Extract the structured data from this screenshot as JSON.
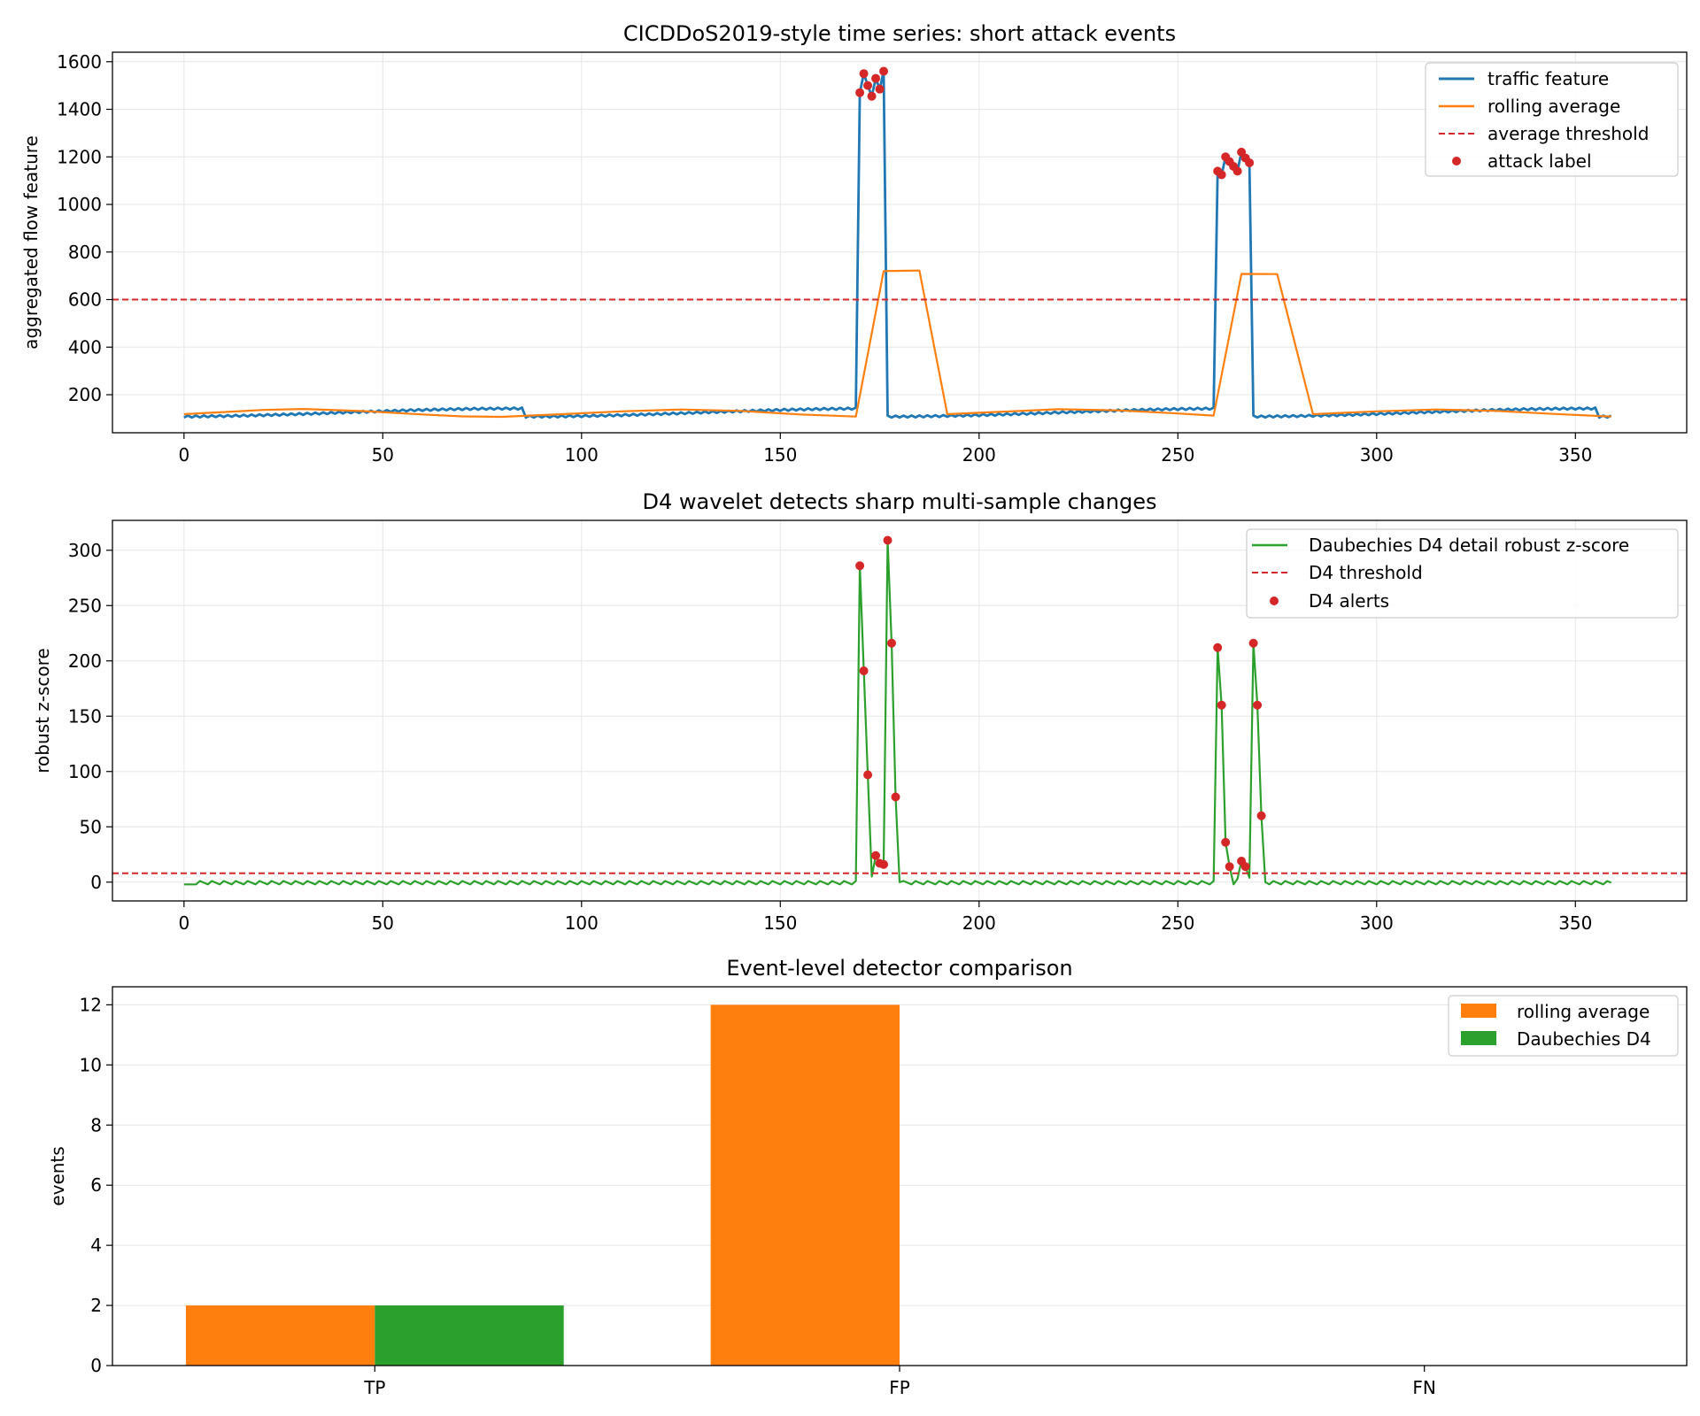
{
  "chart_data": [
    {
      "type": "line",
      "title": "CICDDoS2019-style time series: short attack events",
      "xlabel": "",
      "ylabel": "aggregated flow feature",
      "xlim": [
        -18,
        378
      ],
      "ylim": [
        40,
        1640
      ],
      "xticks": [
        0,
        50,
        100,
        150,
        200,
        250,
        300,
        350
      ],
      "yticks": [
        200,
        400,
        600,
        800,
        1000,
        1200,
        1400,
        1600
      ],
      "grid": true,
      "legend_position": "top-right",
      "series": [
        {
          "name": "traffic feature",
          "kind": "line",
          "color": "#1f77b4",
          "generator": "traffic",
          "baseline_mid": 125,
          "baseline_amp": 17,
          "baseline_period": 180,
          "bursts": [
            {
              "x": [
                170,
                171,
                172,
                173,
                174,
                175,
                176
              ],
              "y": [
                1470,
                1550,
                1500,
                1455,
                1530,
                1485,
                1560
              ]
            },
            {
              "x": [
                260,
                261,
                262,
                263,
                264,
                265,
                266,
                267,
                268
              ],
              "y": [
                1140,
                1125,
                1200,
                1180,
                1160,
                1140,
                1220,
                1195,
                1175
              ]
            }
          ]
        },
        {
          "name": "rolling average",
          "kind": "line",
          "color": "#ff7f0e",
          "points": [
            [
              0,
              118
            ],
            [
              10,
              127
            ],
            [
              20,
              136
            ],
            [
              30,
              140
            ],
            [
              45,
              131
            ],
            [
              60,
              117
            ],
            [
              70,
              109
            ],
            [
              80,
              107
            ],
            [
              95,
              118
            ],
            [
              110,
              130
            ],
            [
              125,
              138
            ],
            [
              140,
              132
            ],
            [
              155,
              117
            ],
            [
              169,
              108
            ],
            [
              176,
              720
            ],
            [
              185,
              722
            ],
            [
              192,
              118
            ],
            [
              205,
              128
            ],
            [
              220,
              139
            ],
            [
              235,
              134
            ],
            [
              250,
              121
            ],
            [
              259,
              112
            ],
            [
              266,
              708
            ],
            [
              275,
              707
            ],
            [
              284,
              118
            ],
            [
              300,
              130
            ],
            [
              315,
              138
            ],
            [
              330,
              132
            ],
            [
              345,
              119
            ],
            [
              359,
              108
            ]
          ]
        },
        {
          "name": "average threshold",
          "kind": "hline",
          "color": "#d62728",
          "y": 600
        },
        {
          "name": "attack label",
          "kind": "scatter",
          "color": "#d62728",
          "points": [
            [
              170,
              1470
            ],
            [
              171,
              1550
            ],
            [
              172,
              1500
            ],
            [
              173,
              1455
            ],
            [
              174,
              1530
            ],
            [
              175,
              1485
            ],
            [
              176,
              1560
            ],
            [
              260,
              1140
            ],
            [
              261,
              1125
            ],
            [
              262,
              1200
            ],
            [
              263,
              1180
            ],
            [
              264,
              1160
            ],
            [
              265,
              1140
            ],
            [
              266,
              1220
            ],
            [
              267,
              1195
            ],
            [
              268,
              1175
            ]
          ]
        }
      ]
    },
    {
      "type": "line",
      "title": "D4 wavelet detects sharp multi-sample changes",
      "xlabel": "",
      "ylabel": "robust z-score",
      "xlim": [
        -18,
        378
      ],
      "ylim": [
        -17,
        327
      ],
      "xticks": [
        0,
        50,
        100,
        150,
        200,
        250,
        300,
        350
      ],
      "yticks": [
        0,
        50,
        100,
        150,
        200,
        250,
        300
      ],
      "grid": true,
      "legend_position": "top-right",
      "series": [
        {
          "name": "Daubechies D4 detail robust z-score",
          "kind": "line",
          "color": "#2ca02c",
          "generator": "zscore",
          "spikes": [
            [
              170,
              286
            ],
            [
              171,
              191
            ],
            [
              172,
              97
            ],
            [
              173,
              5
            ],
            [
              174,
              24
            ],
            [
              175,
              17
            ],
            [
              176,
              16
            ],
            [
              177,
              309
            ],
            [
              178,
              216
            ],
            [
              179,
              77
            ],
            [
              180,
              0
            ],
            [
              260,
              212
            ],
            [
              261,
              160
            ],
            [
              262,
              36
            ],
            [
              263,
              14
            ],
            [
              264,
              -2
            ],
            [
              265,
              3
            ],
            [
              266,
              19
            ],
            [
              267,
              14
            ],
            [
              268,
              4
            ],
            [
              269,
              216
            ],
            [
              270,
              160
            ],
            [
              271,
              60
            ],
            [
              272,
              0
            ]
          ]
        },
        {
          "name": "D4 threshold",
          "kind": "hline",
          "color": "#d62728",
          "y": 8
        },
        {
          "name": "D4 alerts",
          "kind": "scatter",
          "color": "#d62728",
          "points": [
            [
              170,
              286
            ],
            [
              171,
              191
            ],
            [
              172,
              97
            ],
            [
              174,
              24
            ],
            [
              175,
              17
            ],
            [
              176,
              16
            ],
            [
              177,
              309
            ],
            [
              178,
              216
            ],
            [
              179,
              77
            ],
            [
              260,
              212
            ],
            [
              261,
              160
            ],
            [
              262,
              36
            ],
            [
              263,
              14
            ],
            [
              266,
              19
            ],
            [
              267,
              14
            ],
            [
              269,
              216
            ],
            [
              270,
              160
            ],
            [
              271,
              60
            ]
          ]
        }
      ]
    },
    {
      "type": "bar",
      "title": "Event-level detector comparison",
      "xlabel": "",
      "ylabel": "events",
      "categories": [
        "TP",
        "FP",
        "FN"
      ],
      "ylim": [
        0,
        12.6
      ],
      "yticks": [
        0,
        2,
        4,
        6,
        8,
        10,
        12
      ],
      "grid": true,
      "legend_position": "top-right",
      "series": [
        {
          "name": "rolling average",
          "color": "#ff7f0e",
          "values": [
            2,
            12,
            0
          ]
        },
        {
          "name": "Daubechies D4",
          "color": "#2ca02c",
          "values": [
            2,
            0,
            0
          ]
        }
      ]
    }
  ]
}
